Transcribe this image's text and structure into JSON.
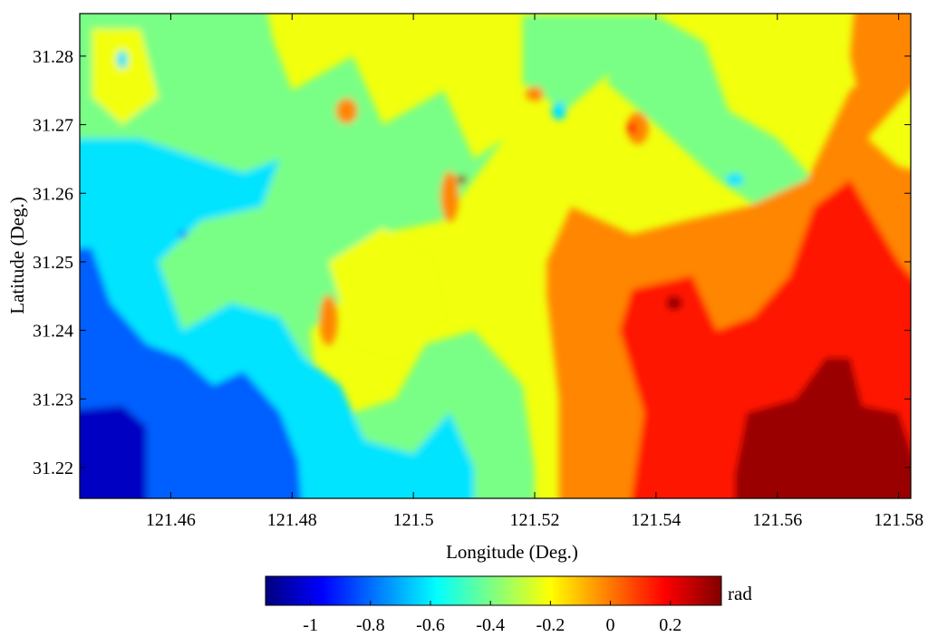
{
  "chart_data": {
    "type": "heatmap",
    "title": "",
    "xlabel": "Longitude (Deg.)",
    "ylabel": "Latitude (Deg.)",
    "xlim": [
      121.445,
      121.582
    ],
    "ylim": [
      31.2155,
      31.2862
    ],
    "x_ticks": [
      121.46,
      121.48,
      121.5,
      121.52,
      121.54,
      121.56,
      121.58
    ],
    "x_tick_labels": [
      "121.46",
      "121.48",
      "121.5",
      "121.52",
      "121.54",
      "121.56",
      "121.58"
    ],
    "y_ticks": [
      31.22,
      31.23,
      31.24,
      31.25,
      31.26,
      31.27,
      31.28
    ],
    "y_tick_labels": [
      "31.22",
      "31.23",
      "31.24",
      "31.25",
      "31.26",
      "31.27",
      "31.28"
    ],
    "colorbar": {
      "label": "rad",
      "colormap": "jet",
      "range": [
        -1.15,
        0.37
      ],
      "ticks": [
        -1,
        -0.8,
        -0.6,
        -0.4,
        -0.2,
        0,
        0.2
      ],
      "tick_labels": [
        "-1",
        "-0.8",
        "-0.6",
        "-0.4",
        "-0.2",
        "0",
        "0.2"
      ]
    },
    "grid": false,
    "field_description": "phase field from about -1.1 rad in the south-west to about 0.35 rad in the south-east",
    "field_samples": [
      {
        "lon": 121.452,
        "lat": 31.221,
        "value": -1.05
      },
      {
        "lon": 121.466,
        "lat": 31.222,
        "value": -0.92
      },
      {
        "lon": 121.476,
        "lat": 31.223,
        "value": -0.85
      },
      {
        "lon": 121.452,
        "lat": 31.236,
        "value": -0.82
      },
      {
        "lon": 121.46,
        "lat": 31.247,
        "value": -0.62
      },
      {
        "lon": 121.47,
        "lat": 31.245,
        "value": -0.55
      },
      {
        "lon": 121.452,
        "lat": 31.26,
        "value": -0.5
      },
      {
        "lon": 121.47,
        "lat": 31.262,
        "value": -0.4
      },
      {
        "lon": 121.455,
        "lat": 31.28,
        "value": -0.35
      },
      {
        "lon": 121.48,
        "lat": 31.28,
        "value": -0.28
      },
      {
        "lon": 121.49,
        "lat": 31.26,
        "value": -0.35
      },
      {
        "lon": 121.5,
        "lat": 31.245,
        "value": -0.25
      },
      {
        "lon": 121.51,
        "lat": 31.225,
        "value": -0.4
      },
      {
        "lon": 121.518,
        "lat": 31.24,
        "value": -0.2
      },
      {
        "lon": 121.505,
        "lat": 31.275,
        "value": -0.25
      },
      {
        "lon": 121.52,
        "lat": 31.26,
        "value": -0.2
      },
      {
        "lon": 121.52,
        "lat": 31.28,
        "value": -0.35
      },
      {
        "lon": 121.54,
        "lat": 31.28,
        "value": -0.2
      },
      {
        "lon": 121.555,
        "lat": 31.27,
        "value": -0.3
      },
      {
        "lon": 121.53,
        "lat": 31.23,
        "value": -0.02
      },
      {
        "lon": 121.54,
        "lat": 31.245,
        "value": 0.12
      },
      {
        "lon": 121.548,
        "lat": 31.226,
        "value": 0.15
      },
      {
        "lon": 121.565,
        "lat": 31.245,
        "value": 0.18
      },
      {
        "lon": 121.568,
        "lat": 31.224,
        "value": 0.33
      },
      {
        "lon": 121.575,
        "lat": 31.26,
        "value": 0.12
      },
      {
        "lon": 121.58,
        "lat": 31.275,
        "value": -0.05
      }
    ]
  }
}
